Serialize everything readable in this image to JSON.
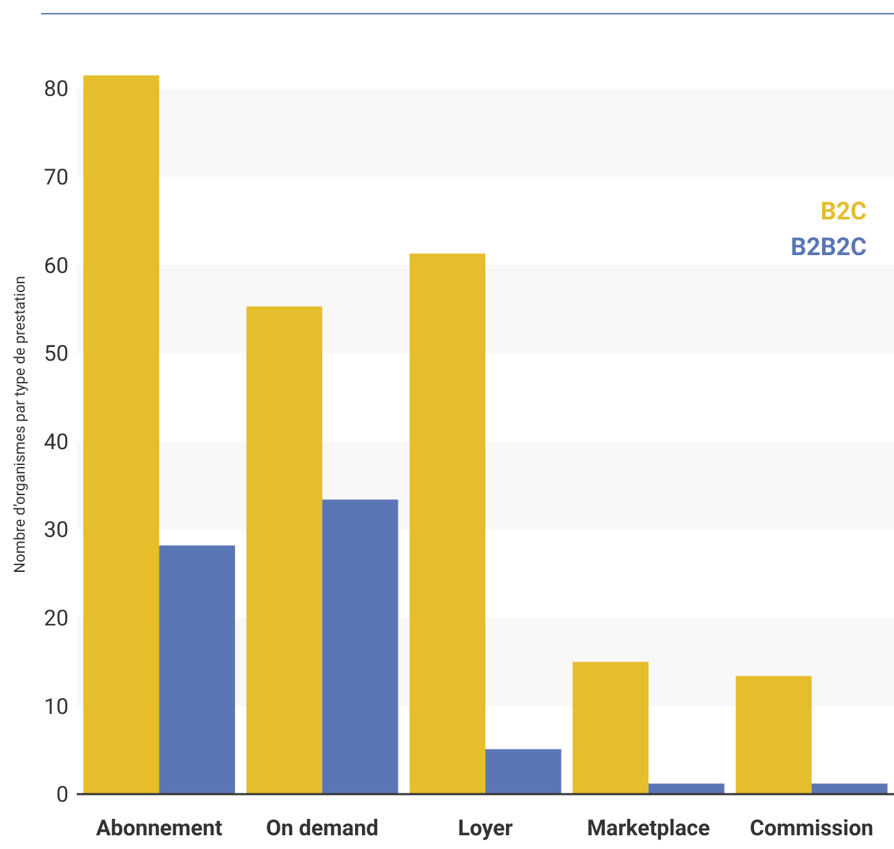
{
  "chart_data": {
    "type": "bar",
    "ylabel": "Nombre d’organismes par type de prestation",
    "categories": [
      "Abonnement",
      "On demand",
      "Loyer",
      "Marketplace",
      "Commission"
    ],
    "series": [
      {
        "name": "B2C",
        "color": "#e5bd2d",
        "values": [
          81.5,
          55.3,
          61.3,
          15,
          13.4
        ]
      },
      {
        "name": "B2B2C",
        "color": "#5b76b5",
        "values": [
          28.2,
          33.4,
          5.1,
          1.2,
          1.2
        ]
      }
    ],
    "ylim": [
      0,
      81.5
    ],
    "yticks": [
      0,
      10,
      20,
      30,
      40,
      50,
      60,
      70,
      80
    ],
    "bands": [
      {
        "axis": "y",
        "from": 10,
        "to": 20,
        "color": "#f8f8f8"
      },
      {
        "axis": "y",
        "from": 30,
        "to": 40,
        "color": "#f8f8f8"
      },
      {
        "axis": "y",
        "from": 50,
        "to": 60,
        "color": "#f8f8f8"
      },
      {
        "axis": "y",
        "from": 70,
        "to": 80,
        "color": "#f8f8f8"
      }
    ],
    "legend": "top right"
  }
}
